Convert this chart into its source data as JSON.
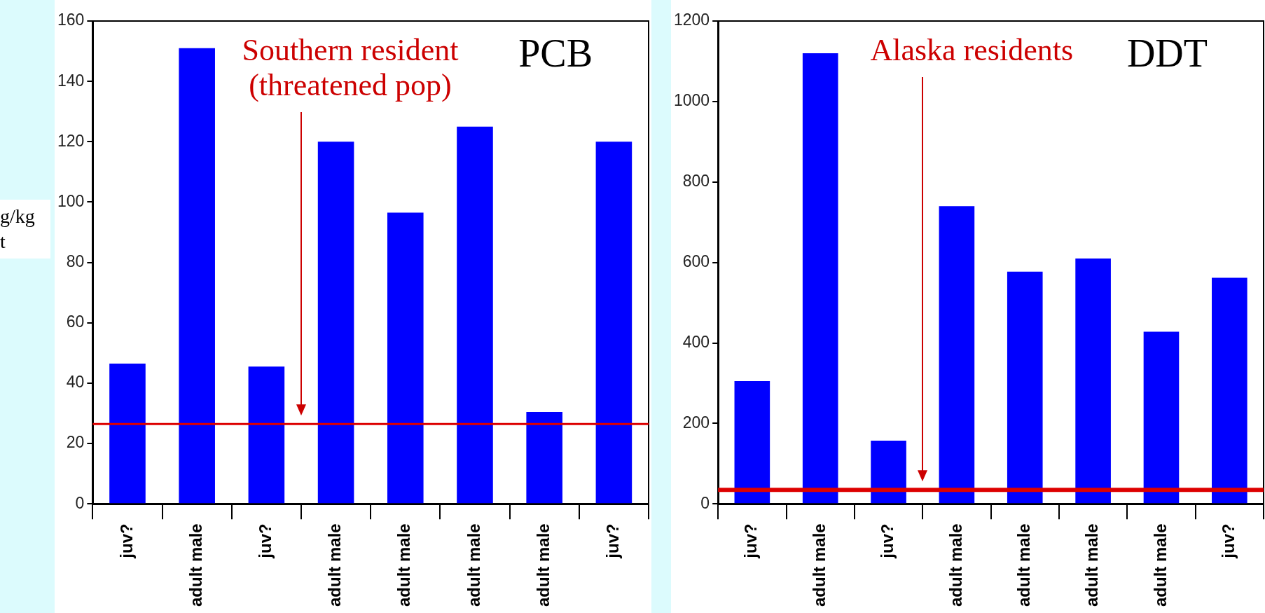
{
  "chart_data": [
    {
      "type": "bar",
      "title": "PCB",
      "ylabel": "g/kg\nt",
      "categories": [
        "juv?",
        "adult male",
        "juv?",
        "adult male",
        "adult male",
        "adult male",
        "adult male",
        "juv?"
      ],
      "values": [
        46.5,
        151,
        45.5,
        120,
        96.5,
        125,
        30.5,
        120
      ],
      "color": "#0000ff",
      "ylim": [
        0,
        160
      ],
      "yticks": [
        0,
        20,
        40,
        60,
        80,
        100,
        120,
        140,
        160
      ],
      "grid": false,
      "legend": false,
      "ref_lines": [
        {
          "axis": "y",
          "value": 26.5,
          "color": "#dd0000"
        }
      ],
      "annotations": [
        "Southern resident\n(threatened pop)"
      ]
    },
    {
      "type": "bar",
      "title": "DDT",
      "categories": [
        "juv?",
        "adult male",
        "juv?",
        "adult male",
        "adult male",
        "adult male",
        "adult male",
        "juv?"
      ],
      "values": [
        305,
        1120,
        157,
        740,
        577,
        610,
        428,
        562
      ],
      "color": "#0000ff",
      "ylim": [
        0,
        1200
      ],
      "yticks": [
        0,
        200,
        400,
        600,
        800,
        1000,
        1200
      ],
      "grid": false,
      "legend": false,
      "ref_lines": [
        {
          "axis": "y",
          "value": 35,
          "color": "#dd0000"
        }
      ],
      "annotations": [
        "Alaska residents"
      ]
    }
  ]
}
